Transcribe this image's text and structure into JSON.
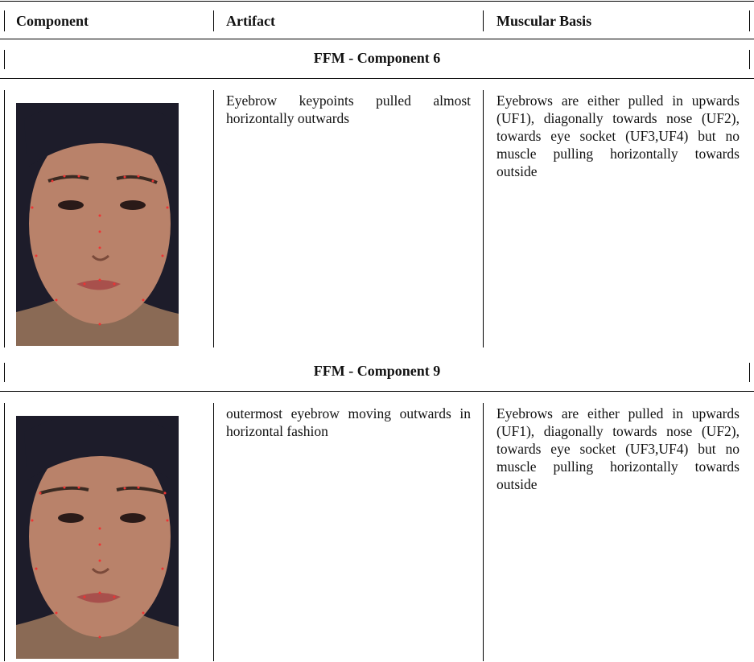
{
  "table": {
    "header": [
      "Component",
      "Artifact",
      "Muscular Basis"
    ],
    "sections": [
      {
        "title": "FFM - Component 6",
        "artifact": "Eyebrow keypoints pulled almost horizontally outwards",
        "muscular_basis": "Eyebrows are either pulled in upwards (UF1), diagonally towards nose (UF2), towards eye socket (UF3,UF4) but no muscle pulling horizontally towards outside"
      },
      {
        "title": "FFM - Component 9",
        "artifact": "outermost eyebrow moving outwards in horizontal fashion",
        "muscular_basis": "Eyebrows are either pulled in upwards (UF1), diagonally towards nose (UF2), towards eye socket (UF3,UF4) but no muscle pulling horizontally towards outside"
      }
    ]
  }
}
